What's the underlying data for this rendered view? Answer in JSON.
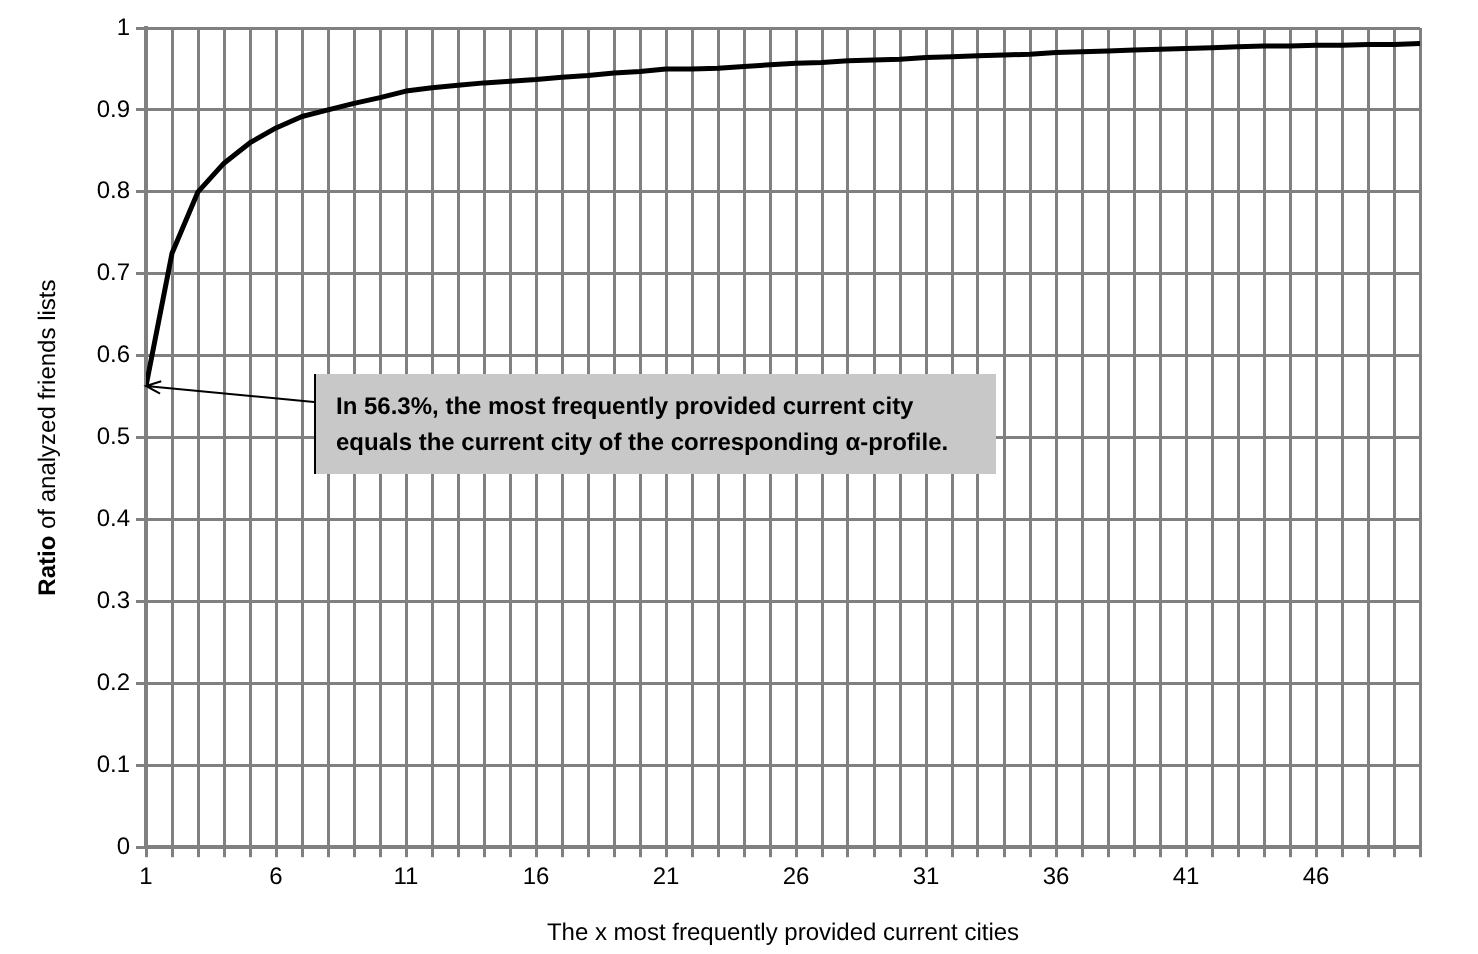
{
  "chart_data": {
    "type": "line",
    "xlabel": "The x most frequently provided current cities",
    "ylabel": "Ratio of analyzed friends lists",
    "x": [
      1,
      2,
      3,
      4,
      5,
      6,
      7,
      8,
      9,
      10,
      11,
      12,
      13,
      14,
      15,
      16,
      17,
      18,
      19,
      20,
      21,
      22,
      23,
      24,
      25,
      26,
      27,
      28,
      29,
      30,
      31,
      32,
      33,
      34,
      35,
      36,
      37,
      38,
      39,
      40,
      41,
      42,
      43,
      44,
      45,
      46,
      47,
      48,
      49,
      50
    ],
    "series": [
      {
        "color": "#000000",
        "values": [
          0.563,
          0.725,
          0.8,
          0.835,
          0.86,
          0.878,
          0.892,
          0.9,
          0.908,
          0.915,
          0.923,
          0.927,
          0.93,
          0.933,
          0.935,
          0.937,
          0.94,
          0.942,
          0.945,
          0.947,
          0.95,
          0.95,
          0.951,
          0.953,
          0.955,
          0.957,
          0.958,
          0.96,
          0.961,
          0.962,
          0.964,
          0.965,
          0.966,
          0.967,
          0.968,
          0.97,
          0.971,
          0.972,
          0.973,
          0.974,
          0.975,
          0.976,
          0.977,
          0.978,
          0.978,
          0.979,
          0.979,
          0.98,
          0.98,
          0.981
        ]
      }
    ],
    "xlim": [
      1,
      50
    ],
    "xticks": [
      1,
      {
        "value": 2,
        "label": null
      },
      {
        "value": 3,
        "label": null
      },
      {
        "value": 4,
        "label": null
      },
      {
        "value": 5,
        "label": null
      },
      6,
      {
        "value": 7,
        "label": null
      },
      {
        "value": 8,
        "label": null
      },
      {
        "value": 9,
        "label": null
      },
      {
        "value": 10,
        "label": null
      },
      11,
      {
        "value": 12,
        "label": null
      },
      {
        "value": 13,
        "label": null
      },
      {
        "value": 14,
        "label": null
      },
      {
        "value": 15,
        "label": null
      },
      16,
      {
        "value": 17,
        "label": null
      },
      {
        "value": 18,
        "label": null
      },
      {
        "value": 19,
        "label": null
      },
      {
        "value": 20,
        "label": null
      },
      21,
      {
        "value": 22,
        "label": null
      },
      {
        "value": 23,
        "label": null
      },
      {
        "value": 24,
        "label": null
      },
      {
        "value": 25,
        "label": null
      },
      26,
      {
        "value": 27,
        "label": null
      },
      {
        "value": 28,
        "label": null
      },
      {
        "value": 29,
        "label": null
      },
      {
        "value": 30,
        "label": null
      },
      31,
      {
        "value": 32,
        "label": null
      },
      {
        "value": 33,
        "label": null
      },
      {
        "value": 34,
        "label": null
      },
      {
        "value": 35,
        "label": null
      },
      36,
      {
        "value": 37,
        "label": null
      },
      {
        "value": 38,
        "label": null
      },
      {
        "value": 39,
        "label": null
      },
      {
        "value": 40,
        "label": null
      },
      41,
      {
        "value": 42,
        "label": null
      },
      {
        "value": 43,
        "label": null
      },
      {
        "value": 44,
        "label": null
      },
      {
        "value": 45,
        "label": null
      },
      46,
      {
        "value": 47,
        "label": null
      },
      {
        "value": 48,
        "label": null
      },
      {
        "value": 49,
        "label": null
      },
      {
        "value": 50,
        "label": null
      }
    ],
    "ylim": [
      0,
      1
    ],
    "yticks": [
      0,
      0.1,
      0.2,
      0.3,
      0.4,
      0.5,
      0.6,
      0.7,
      0.8,
      0.9,
      1
    ],
    "grid": true,
    "legend": false,
    "marker": "none",
    "line_style": "solid",
    "annotations": [
      {
        "text": "In 56.3%, the most frequently provided current city equals the current city of the corresponding α-profile.",
        "x": 1,
        "y": 0.563
      }
    ]
  }
}
